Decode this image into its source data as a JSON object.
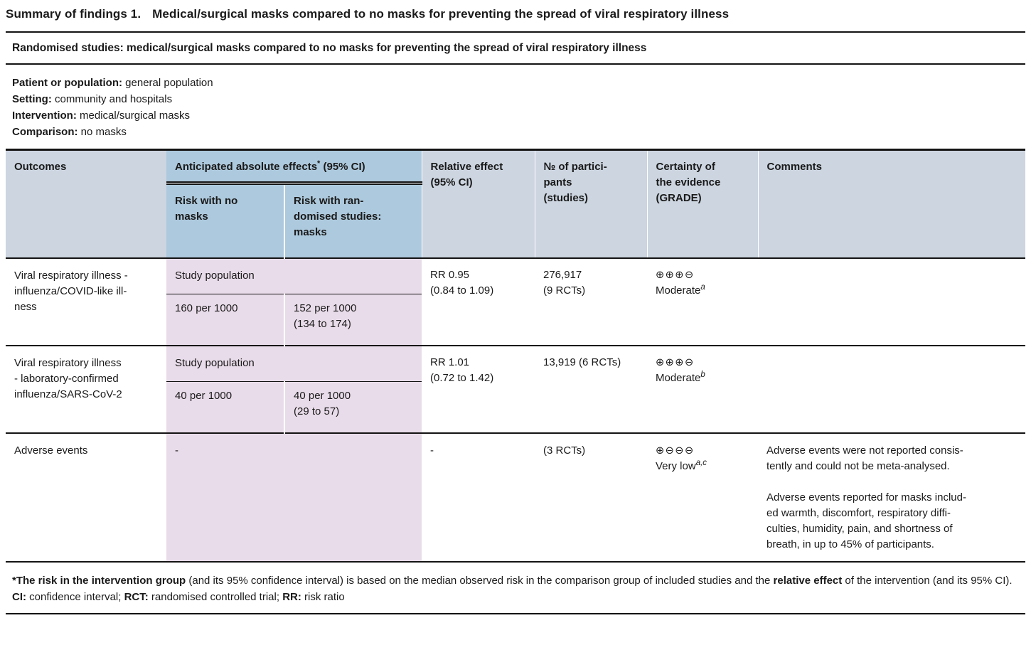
{
  "colors": {
    "header_gray": "#ccd5e0",
    "header_blue": "#adc9dd",
    "pink": "#e9dcea",
    "line": "#131313"
  },
  "page": {
    "title_label": "Summary of findings 1.",
    "title_main": "Medical/surgical masks compared to no masks for preventing the spread of viral respiratory illness",
    "band": "Randomised studies: medical/surgical masks compared to no masks for preventing the spread of viral respiratory illness"
  },
  "population_info": [
    {
      "label": "Patient or population:",
      "value": " general population"
    },
    {
      "label": "Setting:",
      "value": " community and hospitals"
    },
    {
      "label": "Intervention:",
      "value": " medical/surgical masks"
    },
    {
      "label": "Comparison:",
      "value": " no masks"
    }
  ],
  "table": {
    "headers": {
      "outcomes": "Outcomes",
      "anticipated": "Anticipated absolute effects",
      "anticipated_sup": "*",
      "anticipated_rest": " (95% CI)",
      "risk_no_masks": "Risk with no\nmasks",
      "risk_masks": "Risk with ran-\ndomised studies:\nmasks",
      "relative": "Relative effect\n(95% CI)",
      "participants": "№ of partici-\npants\n(studies)",
      "certainty": "Certainty of\nthe evidence\n(GRADE)",
      "comments": "Comments"
    },
    "rows": [
      {
        "outcome": "Viral respiratory illness -\ninfluenza/COVID-like ill-\nness",
        "study_population_label": "Study population",
        "risk_no_masks": "160 per 1000",
        "risk_masks": "152 per 1000\n(134 to 174)",
        "relative_effect": "RR 0.95\n(0.84 to 1.09)",
        "participants": "276,917\n(9 RCTs)",
        "certainty_symbols": "⊕⊕⊕⊖",
        "certainty_label": "Moderate",
        "certainty_sup": "a",
        "comments": ""
      },
      {
        "outcome": "Viral respiratory illness\n- laboratory-confirmed\ninfluenza/SARS-CoV-2",
        "study_population_label": "Study population",
        "risk_no_masks": "40 per 1000",
        "risk_masks": "40 per 1000\n(29 to 57)",
        "relative_effect": "RR 1.01\n(0.72 to 1.42)",
        "participants": "13,919 (6 RCTs)",
        "certainty_symbols": "⊕⊕⊕⊖",
        "certainty_label": "Moderate",
        "certainty_sup": "b",
        "comments": ""
      },
      {
        "outcome": "Adverse events",
        "absolute_effects": "-",
        "relative_effect": "-",
        "participants": "(3 RCTs)",
        "certainty_symbols": "⊕⊖⊖⊖",
        "certainty_label": "Very low",
        "certainty_sup": "a,c",
        "comments_p1": "Adverse events were not reported consis-\ntently and could not be meta-analysed.",
        "comments_p2": "Adverse events reported for masks includ-\ned warmth, discomfort, respiratory diffi-\nculties, humidity, pain, and shortness of\nbreath, in up to 45% of participants."
      }
    ]
  },
  "footnotes": {
    "fn1_parts": [
      {
        "text": "*The risk in the intervention group",
        "bold": true
      },
      {
        "text": " (and its 95% confidence interval) is based on the median observed risk in the comparison group of included studies and the ",
        "bold": false
      },
      {
        "text": "relative effect",
        "bold": true
      },
      {
        "text": " of the intervention (and its 95% CI).",
        "bold": false
      }
    ],
    "fn2_parts": [
      {
        "text": "CI:",
        "bold": true
      },
      {
        "text": " confidence interval; ",
        "bold": false
      },
      {
        "text": "RCT:",
        "bold": true
      },
      {
        "text": " randomised controlled trial; ",
        "bold": false
      },
      {
        "text": "RR:",
        "bold": true
      },
      {
        "text": " risk ratio",
        "bold": false
      }
    ]
  }
}
